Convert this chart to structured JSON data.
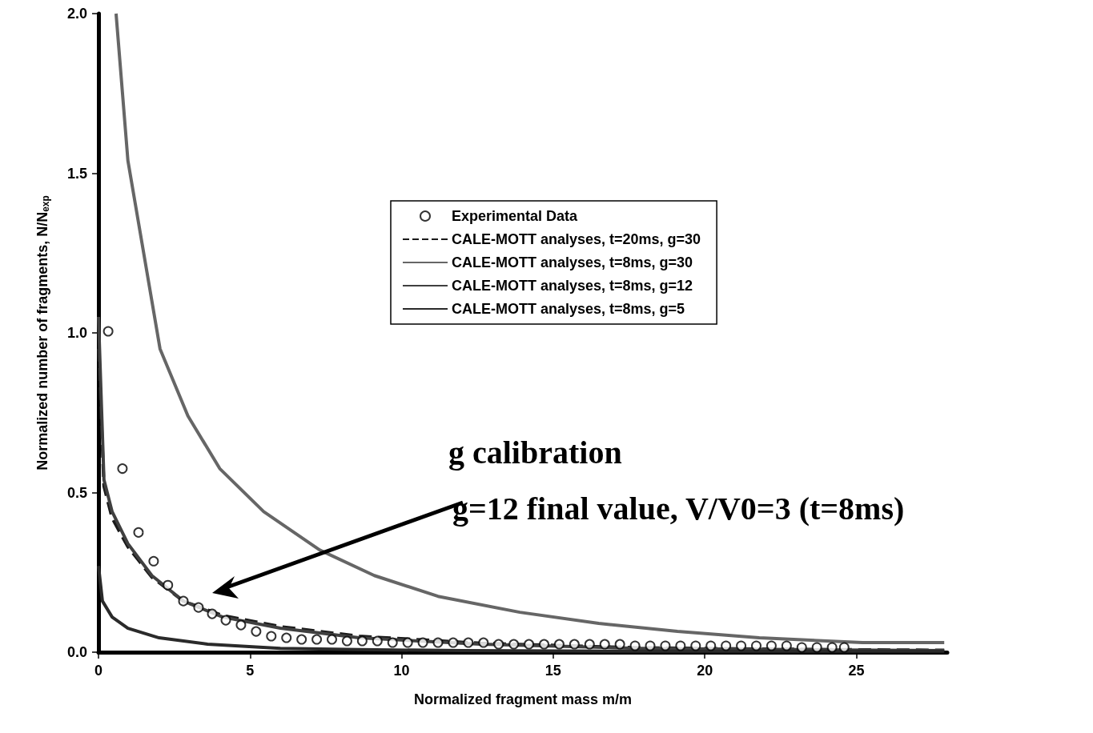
{
  "chart_data": {
    "type": "line",
    "xlabel": "Normalized fragment mass m/m",
    "ylabel": "Normalized number of fragments, N/N$_{exp}$",
    "xlim": [
      0,
      28
    ],
    "xticks": [
      0,
      5,
      10,
      15,
      20,
      25
    ],
    "ylim": [
      0,
      2
    ],
    "yticks": [
      {
        "value": 0,
        "label": "0.0"
      },
      {
        "value": 0.5,
        "label": "0.5"
      },
      {
        "value": 1,
        "label": "1.0"
      },
      {
        "value": 1.5,
        "label": "1.5"
      },
      {
        "value": 2,
        "label": "2.0"
      }
    ],
    "grid": false,
    "legend": "top right",
    "series": [
      {
        "name": "Experimental Data",
        "type": "scatter",
        "marker": "circle",
        "color": "#000000",
        "x": [
          0.32,
          0.79,
          1.32,
          1.82,
          2.29,
          2.8,
          3.3,
          3.75,
          4.2,
          4.7,
          5.2,
          5.7,
          6.2,
          6.7,
          7.2,
          7.7,
          8.2,
          8.7,
          9.2,
          9.7,
          10.2,
          10.7,
          11.2,
          11.7,
          12.2,
          12.7,
          13.2,
          13.7,
          14.2,
          14.7,
          15.2,
          15.7,
          16.2,
          16.7,
          17.2,
          17.7,
          18.2,
          18.7,
          19.2,
          19.7,
          20.2,
          20.7,
          21.2,
          21.7,
          22.2,
          22.7,
          23.2,
          23.7,
          24.2,
          24.6
        ],
        "values": [
          1.005,
          0.575,
          0.375,
          0.285,
          0.21,
          0.16,
          0.14,
          0.12,
          0.1,
          0.085,
          0.065,
          0.05,
          0.045,
          0.04,
          0.04,
          0.04,
          0.035,
          0.035,
          0.035,
          0.03,
          0.03,
          0.03,
          0.03,
          0.03,
          0.03,
          0.03,
          0.025,
          0.025,
          0.025,
          0.025,
          0.025,
          0.025,
          0.025,
          0.025,
          0.025,
          0.02,
          0.02,
          0.02,
          0.02,
          0.02,
          0.02,
          0.02,
          0.02,
          0.02,
          0.02,
          0.02,
          0.015,
          0.015,
          0.015,
          0.015
        ]
      },
      {
        "name": "CALE-MOTT analyses, t=20ms, g=30",
        "line_style": "dashed",
        "color": "#1a1a1a",
        "x": [
          0,
          0.18,
          0.45,
          0.97,
          1.76,
          2.8,
          4.1,
          6.0,
          8.6,
          12.6,
          17.8,
          23.1,
          27.9
        ],
        "values": [
          0.95,
          0.52,
          0.42,
          0.33,
          0.235,
          0.16,
          0.115,
          0.08,
          0.05,
          0.028,
          0.014,
          0.009,
          0.006
        ]
      },
      {
        "name": "CALE-MOTT analyses, t=8ms, g=30",
        "color": "#666666",
        "x": [
          0.58,
          0.97,
          2.03,
          2.95,
          4.0,
          5.45,
          7.3,
          9.1,
          11.2,
          13.9,
          16.5,
          19.1,
          21.8,
          25.2,
          27.9
        ],
        "values": [
          2.0,
          1.54,
          0.95,
          0.74,
          0.575,
          0.44,
          0.32,
          0.24,
          0.175,
          0.125,
          0.09,
          0.065,
          0.045,
          0.03,
          0.03
        ]
      },
      {
        "name": "CALE-MOTT analyses, t=8ms, g=12",
        "color": "#404040",
        "x": [
          0,
          0.18,
          0.45,
          0.97,
          1.76,
          2.8,
          4.1,
          6.0,
          8.6,
          12.6,
          17.8,
          23.1,
          27.9
        ],
        "values": [
          1.05,
          0.54,
          0.44,
          0.34,
          0.24,
          0.16,
          0.11,
          0.075,
          0.045,
          0.025,
          0.012,
          0.008,
          0.005
        ]
      },
      {
        "name": "CALE-MOTT analyses, t=8ms, g=5",
        "color": "#2a2a2a",
        "x": [
          0,
          0.13,
          0.45,
          0.97,
          2.0,
          3.6,
          6.0,
          8.6,
          12.0,
          18.0,
          27.9
        ],
        "values": [
          0.27,
          0.16,
          0.11,
          0.075,
          0.045,
          0.025,
          0.012,
          0.008,
          0.005,
          0.003,
          0.003
        ]
      }
    ],
    "annotations": [
      "g calibration",
      "g=12 final value, V/V0=3 (t=8ms)"
    ]
  }
}
